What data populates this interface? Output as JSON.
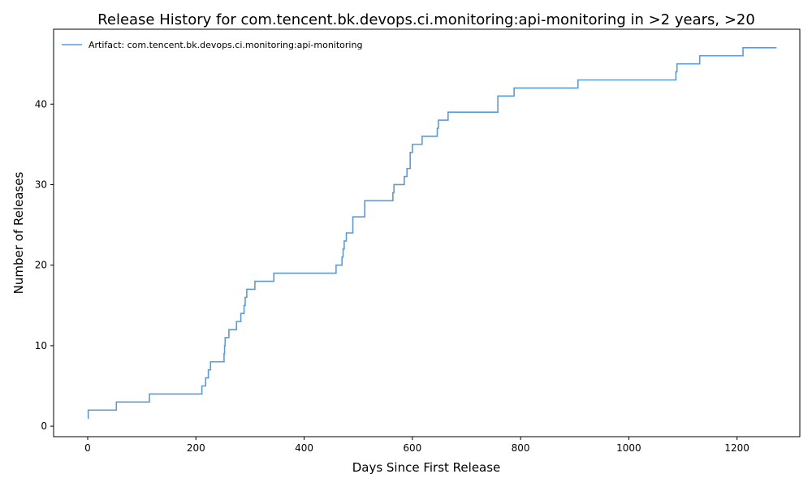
{
  "chart_data": {
    "type": "line",
    "title": "Release History for com.tencent.bk.devops.ci.monitoring:api-monitoring in >2 years, >20",
    "xlabel": "Days Since First Release",
    "ylabel": "Number of Releases",
    "xlim": [
      -63,
      1316
    ],
    "ylim": [
      -1.3,
      49.3
    ],
    "xticks": [
      0,
      200,
      400,
      600,
      800,
      1000,
      1200
    ],
    "yticks": [
      0,
      10,
      20,
      30,
      40
    ],
    "grid": false,
    "legend_position": "top-left",
    "step": "post",
    "line_color": "#5b9bd5",
    "series": [
      {
        "name": "Artifact: com.tencent.bk.devops.ci.monitoring:api-monitoring",
        "x": [
          0,
          1,
          53,
          114,
          211,
          218,
          223,
          227,
          252,
          253,
          254,
          261,
          275,
          283,
          289,
          291,
          294,
          309,
          344,
          459,
          470,
          472,
          474,
          478,
          480,
          490,
          512,
          564,
          566,
          585,
          590,
          596,
          600,
          618,
          646,
          648,
          666,
          758,
          788,
          906,
          1087,
          1089,
          1131,
          1211,
          1273
        ],
        "y": [
          1,
          2,
          3,
          4,
          5,
          6,
          7,
          8,
          9,
          10,
          11,
          12,
          13,
          14,
          15,
          16,
          17,
          18,
          19,
          20,
          21,
          22,
          23,
          24,
          24,
          26,
          28,
          29,
          30,
          31,
          32,
          34,
          35,
          36,
          37,
          38,
          39,
          41,
          42,
          43,
          44,
          45,
          46,
          47,
          47
        ]
      }
    ]
  }
}
